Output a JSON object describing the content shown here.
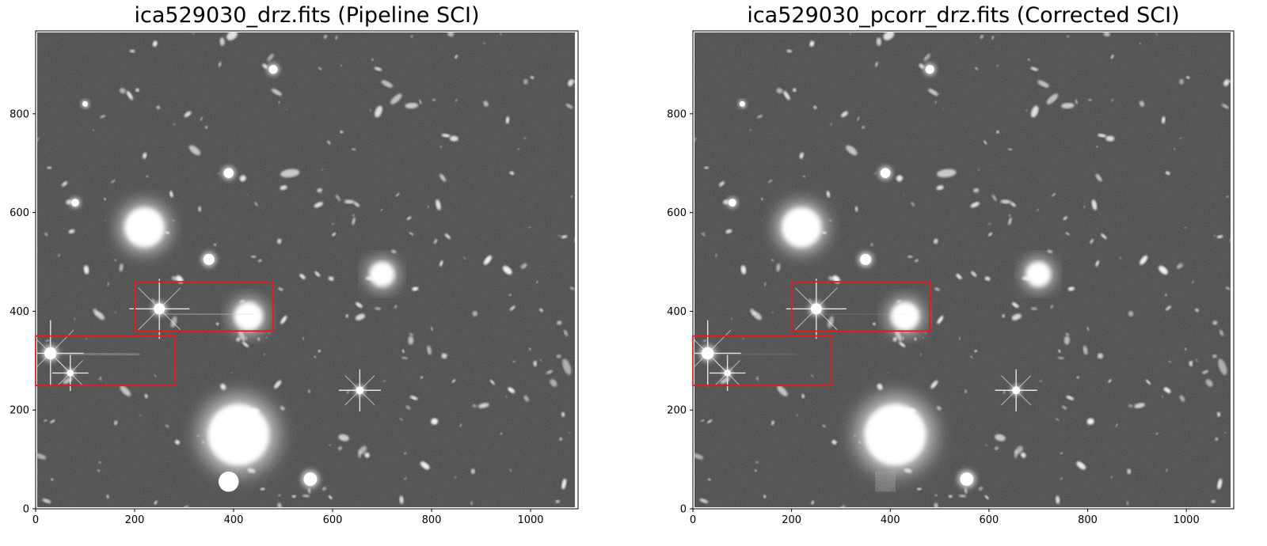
{
  "panels": [
    {
      "id": "left",
      "title": "ica529030_drz.fits (Pipeline SCI)",
      "corrected": false,
      "xticks": [
        0,
        200,
        400,
        600,
        800,
        1000
      ],
      "yticks": [
        0,
        200,
        400,
        600,
        800
      ],
      "xlim": [
        0,
        1096
      ],
      "ylim": [
        0,
        968
      ],
      "regions": [
        {
          "x0": 200,
          "x1": 480,
          "y0": 360,
          "y1": 460
        },
        {
          "x0": 0,
          "x1": 280,
          "y0": 250,
          "y1": 350
        }
      ]
    },
    {
      "id": "right",
      "title": "ica529030_pcorr_drz.fits (Corrected SCI)",
      "corrected": true,
      "xticks": [
        0,
        200,
        400,
        600,
        800,
        1000
      ],
      "yticks": [
        0,
        200,
        400,
        600,
        800
      ],
      "xlim": [
        0,
        1096
      ],
      "ylim": [
        0,
        968
      ],
      "regions": [
        {
          "x0": 200,
          "x1": 480,
          "y0": 360,
          "y1": 460
        },
        {
          "x0": 0,
          "x1": 280,
          "y0": 250,
          "y1": 350
        }
      ]
    }
  ],
  "colors": {
    "sky": "#454545",
    "axes_bg": "#ffffff",
    "frame": "#000000",
    "region_box": "#e41a1c",
    "source": "#f4f4f4"
  },
  "image_cmap": "greyscale"
}
